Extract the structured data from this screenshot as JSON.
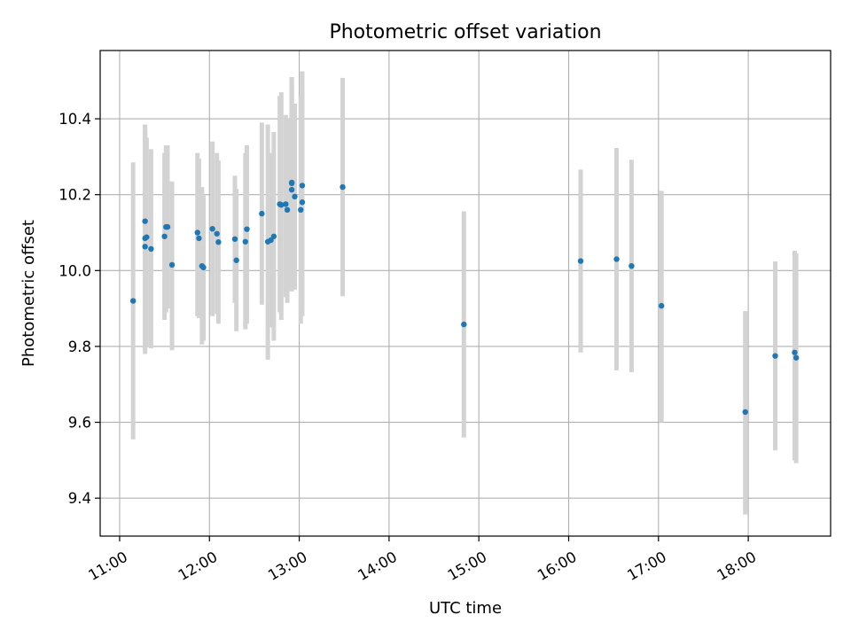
{
  "chart_data": {
    "type": "scatter",
    "title": "Photometric offset variation",
    "xlabel": "UTC time",
    "ylabel": "Photometric offset",
    "x_unit": "UTC hours",
    "xlim": [
      "10:47",
      "18:55"
    ],
    "ylim": [
      9.3,
      10.58
    ],
    "x_ticks": [
      "11:00",
      "12:00",
      "13:00",
      "14:00",
      "15:00",
      "16:00",
      "17:00",
      "18:00"
    ],
    "y_ticks": [
      "9.4",
      "9.6",
      "9.8",
      "10.0",
      "10.2",
      "10.4"
    ],
    "grid": true,
    "legend": "none",
    "colors": {
      "point": "#1f77b4",
      "errorbar": "#d3d3d3"
    },
    "points": [
      {
        "x": "11:09",
        "y": 9.92,
        "low": 9.555,
        "high": 10.285
      },
      {
        "x": "11:17",
        "y": 10.13,
        "low": 9.8,
        "high": 10.37
      },
      {
        "x": "11:17",
        "y": 10.085,
        "low": 9.79,
        "high": 10.38
      },
      {
        "x": "11:17",
        "y": 10.063,
        "low": 9.78,
        "high": 10.385
      },
      {
        "x": "11:18",
        "y": 10.088,
        "low": 9.8,
        "high": 10.35
      },
      {
        "x": "11:21",
        "y": 10.057,
        "low": 9.795,
        "high": 10.32
      },
      {
        "x": "11:30",
        "y": 10.09,
        "low": 9.87,
        "high": 10.31
      },
      {
        "x": "11:31",
        "y": 10.115,
        "low": 9.89,
        "high": 10.33
      },
      {
        "x": "11:32",
        "y": 10.115,
        "low": 9.9,
        "high": 10.33
      },
      {
        "x": "11:35",
        "y": 10.015,
        "low": 9.79,
        "high": 10.235
      },
      {
        "x": "11:52",
        "y": 10.1,
        "low": 9.88,
        "high": 10.31
      },
      {
        "x": "11:53",
        "y": 10.085,
        "low": 9.875,
        "high": 10.295
      },
      {
        "x": "11:55",
        "y": 10.012,
        "low": 9.805,
        "high": 10.22
      },
      {
        "x": "11:56",
        "y": 10.008,
        "low": 9.815,
        "high": 10.2
      },
      {
        "x": "12:02",
        "y": 10.11,
        "low": 9.88,
        "high": 10.34
      },
      {
        "x": "12:05",
        "y": 10.097,
        "low": 9.885,
        "high": 10.31
      },
      {
        "x": "12:06",
        "y": 10.075,
        "low": 9.86,
        "high": 10.29
      },
      {
        "x": "12:17",
        "y": 10.083,
        "low": 9.915,
        "high": 10.25
      },
      {
        "x": "12:18",
        "y": 10.027,
        "low": 9.84,
        "high": 10.215
      },
      {
        "x": "12:24",
        "y": 10.076,
        "low": 9.845,
        "high": 10.31
      },
      {
        "x": "12:25",
        "y": 10.109,
        "low": 9.86,
        "high": 10.33
      },
      {
        "x": "12:35",
        "y": 10.15,
        "low": 9.91,
        "high": 10.39
      },
      {
        "x": "12:39",
        "y": 10.076,
        "low": 9.765,
        "high": 10.385
      },
      {
        "x": "12:41",
        "y": 10.08,
        "low": 9.85,
        "high": 10.31
      },
      {
        "x": "12:43",
        "y": 10.09,
        "low": 9.815,
        "high": 10.365
      },
      {
        "x": "12:47",
        "y": 10.175,
        "low": 9.89,
        "high": 10.46
      },
      {
        "x": "12:48",
        "y": 10.173,
        "low": 9.87,
        "high": 10.47
      },
      {
        "x": "12:51",
        "y": 10.175,
        "low": 9.93,
        "high": 10.41
      },
      {
        "x": "12:52",
        "y": 10.16,
        "low": 9.915,
        "high": 10.4
      },
      {
        "x": "12:55",
        "y": 10.232,
        "low": 9.955,
        "high": 10.51
      },
      {
        "x": "12:55",
        "y": 10.23,
        "low": 9.95,
        "high": 10.51
      },
      {
        "x": "12:55",
        "y": 10.213,
        "low": 9.945,
        "high": 10.49
      },
      {
        "x": "12:57",
        "y": 10.195,
        "low": 9.95,
        "high": 10.44
      },
      {
        "x": "13:01",
        "y": 10.16,
        "low": 9.86,
        "high": 10.46
      },
      {
        "x": "13:02",
        "y": 10.224,
        "low": 9.915,
        "high": 10.525
      },
      {
        "x": "13:02",
        "y": 10.18,
        "low": 9.88,
        "high": 10.48
      },
      {
        "x": "13:29",
        "y": 10.22,
        "low": 9.932,
        "high": 10.508
      },
      {
        "x": "14:50",
        "y": 9.858,
        "low": 9.56,
        "high": 10.156
      },
      {
        "x": "16:08",
        "y": 10.025,
        "low": 9.784,
        "high": 10.266
      },
      {
        "x": "16:32",
        "y": 10.03,
        "low": 9.737,
        "high": 10.323
      },
      {
        "x": "16:42",
        "y": 10.012,
        "low": 9.732,
        "high": 10.292
      },
      {
        "x": "17:02",
        "y": 9.907,
        "low": 9.6,
        "high": 10.21
      },
      {
        "x": "17:58",
        "y": 9.627,
        "low": 9.357,
        "high": 9.893
      },
      {
        "x": "18:18",
        "y": 9.775,
        "low": 9.526,
        "high": 10.024
      },
      {
        "x": "18:31",
        "y": 9.784,
        "low": 9.5,
        "high": 10.052
      },
      {
        "x": "18:32",
        "y": 9.77,
        "low": 9.492,
        "high": 10.045
      }
    ]
  }
}
